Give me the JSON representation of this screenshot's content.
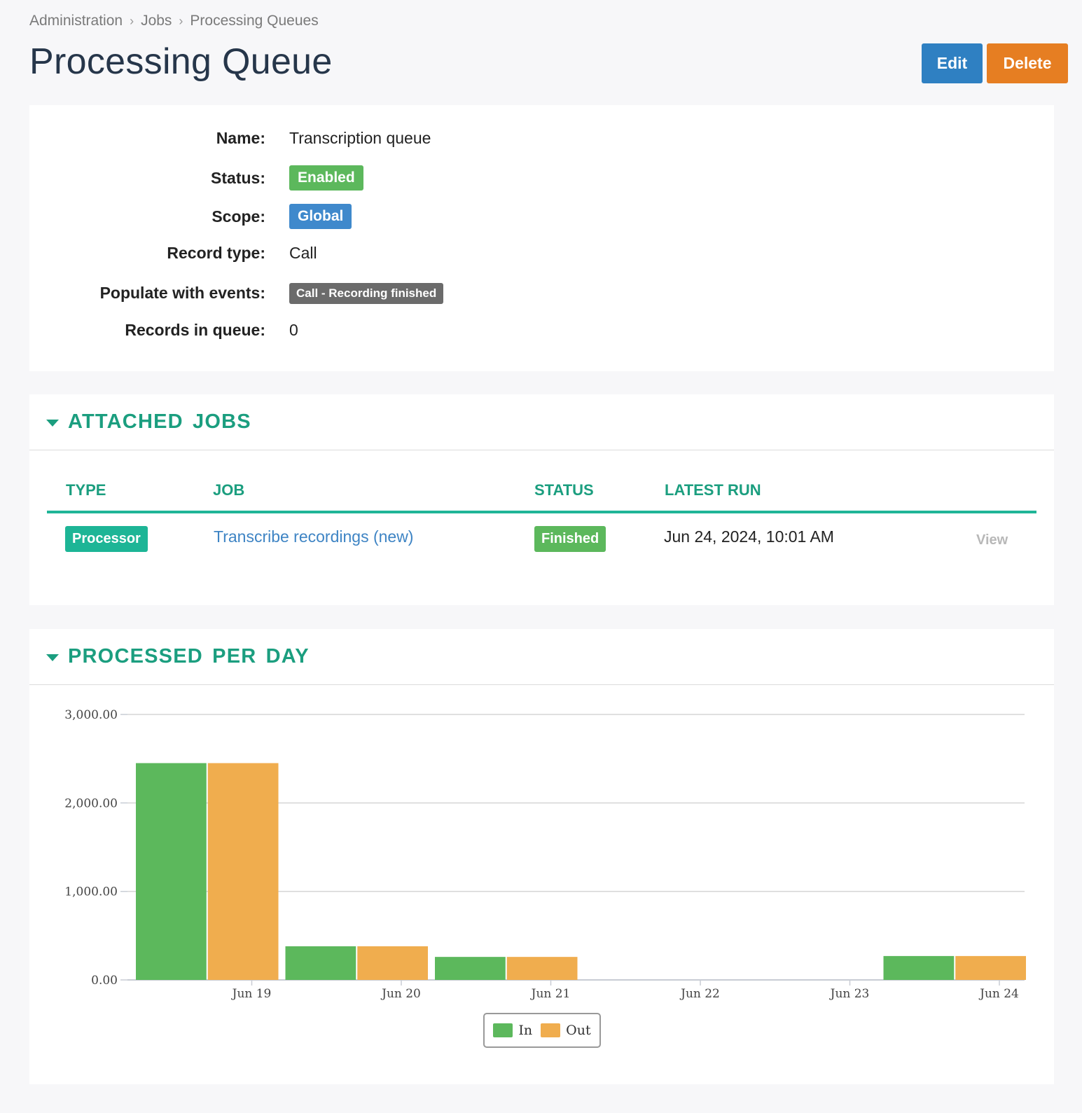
{
  "breadcrumb": [
    "Administration",
    "Jobs",
    "Processing Queues"
  ],
  "page_title": "Processing Queue",
  "actions": {
    "edit": "Edit",
    "delete": "Delete"
  },
  "info": {
    "name_label": "Name:",
    "name_value": "Transcription queue",
    "status_label": "Status:",
    "status_value": "Enabled",
    "scope_label": "Scope:",
    "scope_value": "Global",
    "record_type_label": "Record type:",
    "record_type_value": "Call",
    "events_label": "Populate with events:",
    "events_value": "Call - Recording finished",
    "records_label": "Records in queue:",
    "records_value": "0"
  },
  "attached_jobs": {
    "title": "ATTACHED JOBS",
    "columns": [
      "TYPE",
      "JOB",
      "STATUS",
      "LATEST RUN"
    ],
    "rows": [
      {
        "type": "Processor",
        "job": "Transcribe recordings (new)",
        "status": "Finished",
        "latest_run": "Jun 24, 2024, 10:01 AM",
        "action": "View"
      }
    ]
  },
  "processed": {
    "title": "PROCESSED PER DAY"
  },
  "colors": {
    "accent": "#1b9e7f",
    "in": "#5cb85c",
    "out": "#f0ad4e",
    "edit": "#2f80c2",
    "delete": "#e67e22"
  },
  "chart_data": {
    "type": "bar",
    "categories": [
      "Jun 19",
      "Jun 20",
      "Jun 21",
      "Jun 22",
      "Jun 23",
      "Jun 24"
    ],
    "series": [
      {
        "name": "In",
        "values": [
          2450,
          380,
          260,
          0,
          0,
          270
        ]
      },
      {
        "name": "Out",
        "values": [
          2450,
          380,
          260,
          0,
          0,
          270
        ]
      }
    ],
    "ylim": [
      0,
      3000
    ],
    "yticks": [
      "0.00",
      "1,000.00",
      "2,000.00",
      "3,000.00"
    ],
    "grid": true,
    "legend": "bottom-center"
  }
}
